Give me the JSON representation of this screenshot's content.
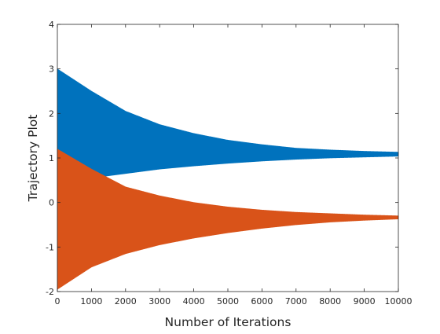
{
  "figure": {
    "background": "#ffffff"
  },
  "chart_data": {
    "type": "line",
    "title": "",
    "xlabel": "Number of Iterations",
    "ylabel": "Trajectory Plot",
    "xlim": [
      0,
      10000
    ],
    "ylim": [
      -2,
      4
    ],
    "xticks": [
      0,
      1000,
      2000,
      3000,
      4000,
      5000,
      6000,
      7000,
      8000,
      9000,
      10000
    ],
    "xtick_labels": [
      "0",
      "1000",
      "2000",
      "3000",
      "4000",
      "5000",
      "6000",
      "7000",
      "8000",
      "9000",
      "10000"
    ],
    "yticks": [
      -2,
      -1,
      0,
      1,
      2,
      3,
      4
    ],
    "ytick_labels": [
      "-2",
      "-1",
      "0",
      "1",
      "2",
      "3",
      "4"
    ],
    "grid": false,
    "legend": false,
    "series": [
      {
        "color": "#0072BD",
        "envelope": {
          "x": [
            0,
            1000,
            2000,
            3000,
            4000,
            5000,
            6000,
            7000,
            8000,
            9000,
            10000
          ],
          "upper": [
            3.0,
            2.5,
            2.05,
            1.75,
            1.55,
            1.4,
            1.3,
            1.22,
            1.18,
            1.15,
            1.13
          ],
          "lower": [
            0.45,
            0.55,
            0.65,
            0.75,
            0.82,
            0.88,
            0.93,
            0.97,
            1.0,
            1.02,
            1.04
          ]
        }
      },
      {
        "color": "#D95319",
        "envelope": {
          "x": [
            0,
            1000,
            2000,
            3000,
            4000,
            5000,
            6000,
            7000,
            8000,
            9000,
            10000
          ],
          "upper": [
            1.2,
            0.75,
            0.35,
            0.15,
            0.0,
            -0.1,
            -0.17,
            -0.22,
            -0.25,
            -0.28,
            -0.3
          ],
          "lower": [
            -1.95,
            -1.45,
            -1.15,
            -0.95,
            -0.8,
            -0.68,
            -0.58,
            -0.5,
            -0.44,
            -0.4,
            -0.37
          ]
        }
      }
    ]
  }
}
